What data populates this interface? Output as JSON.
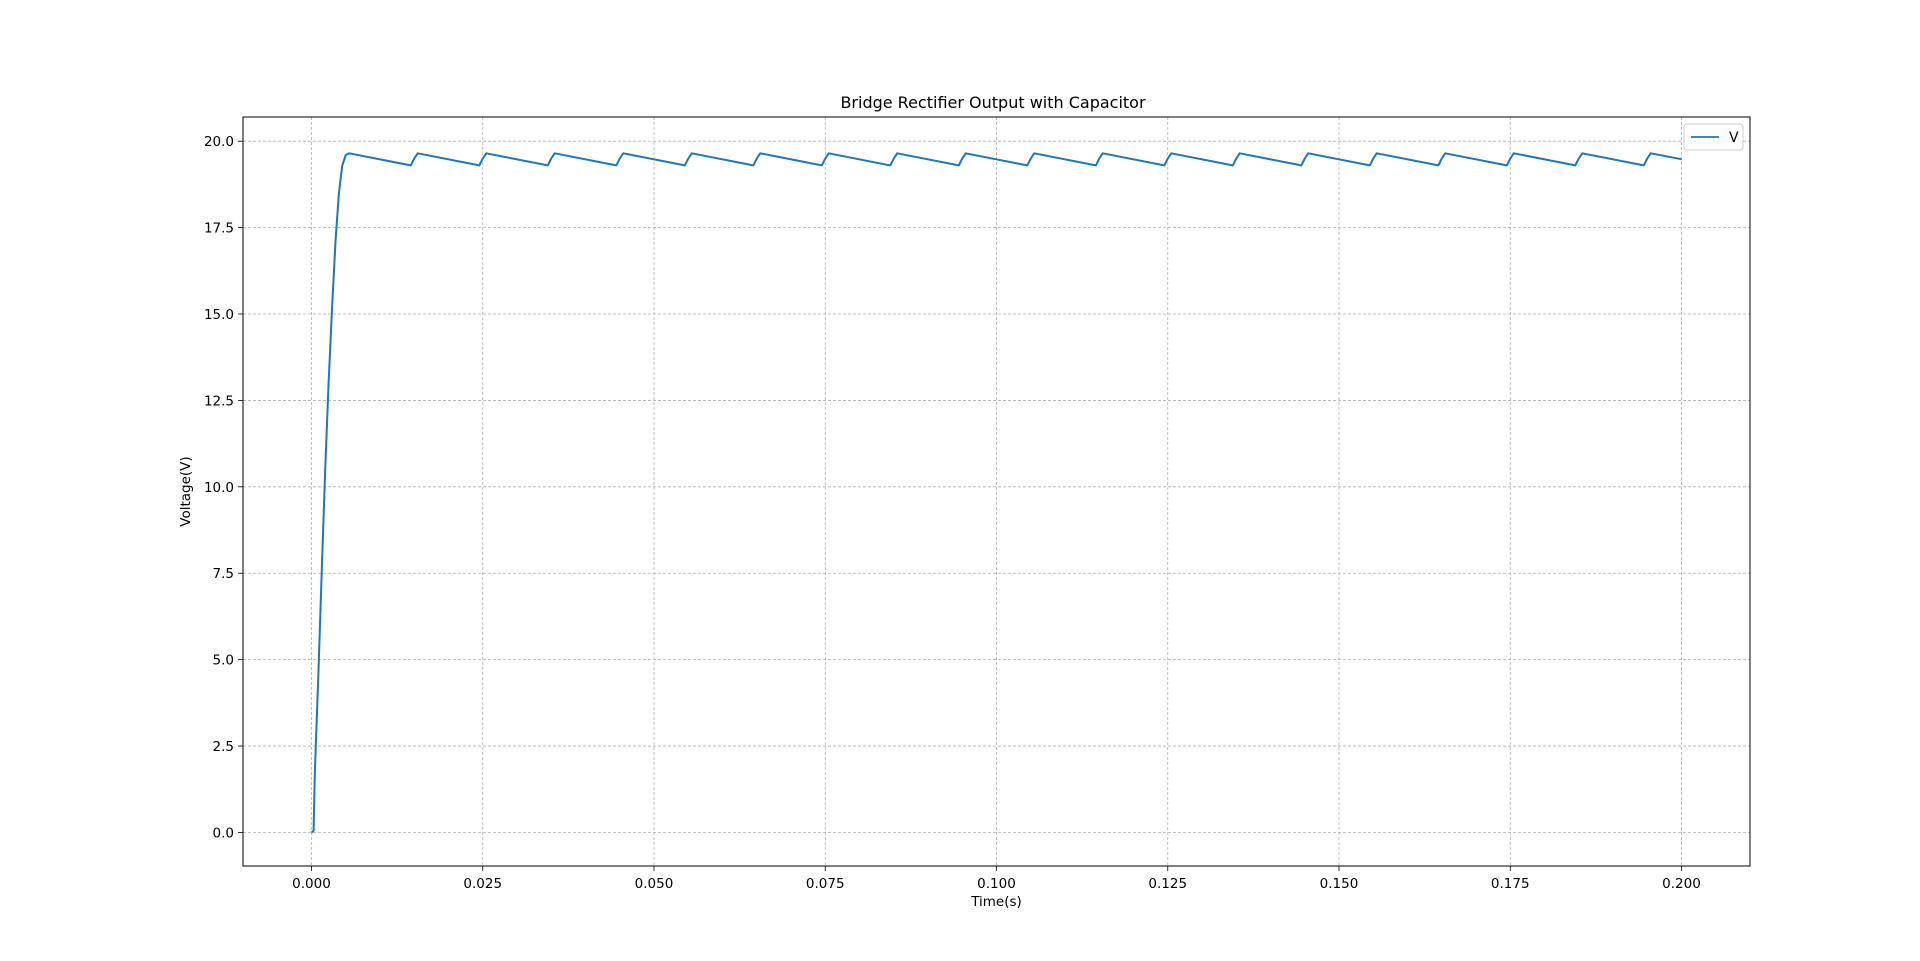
{
  "chart_data": {
    "type": "line",
    "title": "Bridge Rectifier Output with Capacitor",
    "xlabel": "Time(s)",
    "ylabel": "Voltage(V)",
    "xlim": [
      -0.01,
      0.21
    ],
    "ylim": [
      -0.97,
      20.7
    ],
    "xticks": [
      0.0,
      0.025,
      0.05,
      0.075,
      0.1,
      0.125,
      0.15,
      0.175,
      0.2
    ],
    "xtick_labels": [
      "0.000",
      "0.025",
      "0.050",
      "0.075",
      "0.100",
      "0.125",
      "0.150",
      "0.175",
      "0.200"
    ],
    "yticks": [
      0.0,
      2.5,
      5.0,
      7.5,
      10.0,
      12.5,
      15.0,
      17.5,
      20.0
    ],
    "ytick_labels": [
      "0.0",
      "2.5",
      "5.0",
      "7.5",
      "10.0",
      "12.5",
      "15.0",
      "17.5",
      "20.0"
    ],
    "grid": true,
    "legend_position": "top-right",
    "series": [
      {
        "name": "V",
        "color": "#1f77b4",
        "x": [
          0.0,
          0.0003,
          0.0005,
          0.001,
          0.0015,
          0.002,
          0.0025,
          0.003,
          0.0035,
          0.004,
          0.0045,
          0.005,
          0.0055,
          0.0145,
          0.015,
          0.0155,
          0.0245,
          0.025,
          0.0255,
          0.0345,
          0.035,
          0.0355,
          0.0445,
          0.045,
          0.0455,
          0.0545,
          0.055,
          0.0555,
          0.0645,
          0.065,
          0.0655,
          0.0745,
          0.075,
          0.0755,
          0.0845,
          0.085,
          0.0855,
          0.0945,
          0.095,
          0.0955,
          0.1045,
          0.105,
          0.1055,
          0.1145,
          0.115,
          0.1155,
          0.1245,
          0.125,
          0.1255,
          0.1345,
          0.135,
          0.1355,
          0.1445,
          0.145,
          0.1455,
          0.1545,
          0.155,
          0.1555,
          0.1645,
          0.165,
          0.1655,
          0.1745,
          0.175,
          0.1755,
          0.1845,
          0.185,
          0.1855,
          0.1945,
          0.195,
          0.1955,
          0.2
        ],
        "y": [
          0.0,
          0.05,
          1.8,
          4.6,
          7.6,
          10.5,
          13.0,
          15.2,
          17.1,
          18.5,
          19.3,
          19.6,
          19.65,
          19.3,
          19.5,
          19.65,
          19.3,
          19.5,
          19.65,
          19.3,
          19.5,
          19.65,
          19.3,
          19.5,
          19.65,
          19.3,
          19.5,
          19.65,
          19.3,
          19.5,
          19.65,
          19.3,
          19.5,
          19.65,
          19.3,
          19.5,
          19.65,
          19.3,
          19.5,
          19.65,
          19.3,
          19.5,
          19.65,
          19.3,
          19.5,
          19.65,
          19.3,
          19.5,
          19.65,
          19.3,
          19.5,
          19.65,
          19.3,
          19.5,
          19.65,
          19.3,
          19.5,
          19.65,
          19.3,
          19.5,
          19.65,
          19.3,
          19.5,
          19.65,
          19.3,
          19.5,
          19.65,
          19.3,
          19.5,
          19.65,
          19.48
        ]
      }
    ]
  }
}
